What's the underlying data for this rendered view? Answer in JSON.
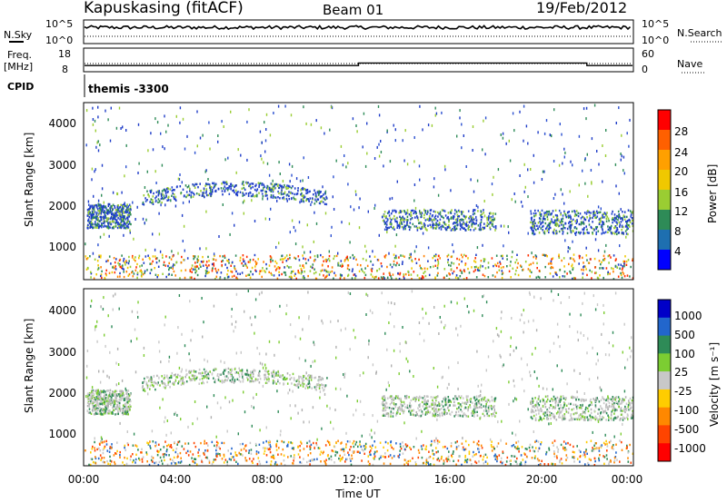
{
  "header": {
    "station": "Kapuskasing (fitACF)",
    "beam": "Beam 01",
    "date": "19/Feb/2012"
  },
  "colors": {
    "scatter_fill": "#2040c0",
    "frame": "#000000"
  },
  "panels": {
    "nsky": {
      "label": "N.Sky",
      "right_label": "N.Search",
      "ticks_left": [
        "10^5",
        "10^0"
      ],
      "ticks_right": [
        "10^5",
        "10^0"
      ]
    },
    "freq": {
      "label_line1": "Freq.",
      "label_line2": "[MHz]",
      "right_label": "Nave",
      "ticks_left": [
        "18",
        "8"
      ],
      "ticks_right": [
        "60",
        "0"
      ]
    },
    "cpid": {
      "label": "CPID",
      "text": "themis -3300"
    },
    "power": {
      "ylabel": "Slant Range [km]",
      "yticks": [
        "4000",
        "3000",
        "2000",
        "1000"
      ],
      "colorbar_label": "Power [dB]",
      "colorbar_ticks": [
        "28",
        "24",
        "20",
        "16",
        "12",
        "8",
        "4"
      ],
      "colorbar_colors": [
        "#ff0000",
        "#ff6000",
        "#ffa000",
        "#f0c800",
        "#9acd32",
        "#2e8b57",
        "#1e6fb0",
        "#0000ff"
      ]
    },
    "velocity": {
      "ylabel": "Slant Range [km]",
      "yticks": [
        "4000",
        "3000",
        "2000",
        "1000"
      ],
      "colorbar_label": "Velocity [m s⁻¹]",
      "colorbar_ticks": [
        "1000",
        "500",
        "100",
        "25",
        "-25",
        "-100",
        "-500",
        "-1000"
      ],
      "colorbar_colors": [
        "#0000c8",
        "#2266cc",
        "#2e8b57",
        "#7ccd32",
        "#c8c8c8",
        "#ffcc00",
        "#ff8800",
        "#ff4400",
        "#ff0000"
      ]
    }
  },
  "xaxis": {
    "label": "Time UT",
    "ticks": [
      "00:00",
      "04:00",
      "08:00",
      "12:00",
      "16:00",
      "20:00",
      "00:00"
    ]
  },
  "chart_data": {
    "type": "heatmap",
    "x_unit": "hours UT",
    "x_range": [
      0,
      24
    ],
    "y_range_km": [
      180,
      4500
    ],
    "freq_segments_mhz": [
      {
        "start": 0,
        "end": 12,
        "value": 10.4
      },
      {
        "start": 12,
        "end": 22,
        "value": 11.6
      },
      {
        "start": 22,
        "end": 24,
        "value": 10.4
      }
    ],
    "nsky_level": 3.5,
    "scatter_bands": [
      {
        "name": "band-a",
        "t0": 0.1,
        "t1": 2.0,
        "r0": 1450,
        "r1": 2050
      },
      {
        "name": "band-b",
        "t0": 2.5,
        "t1": 10.6,
        "r0": 2000,
        "r1": 2350
      },
      {
        "name": "band-c",
        "t0": 13.0,
        "t1": 18.0,
        "r0": 1400,
        "r1": 1900
      },
      {
        "name": "band-d",
        "t0": 19.5,
        "t1": 24.0,
        "r0": 1300,
        "r1": 1900
      },
      {
        "name": "near-range",
        "t0": 0.0,
        "t1": 24.0,
        "r0": 200,
        "r1": 800
      }
    ]
  }
}
